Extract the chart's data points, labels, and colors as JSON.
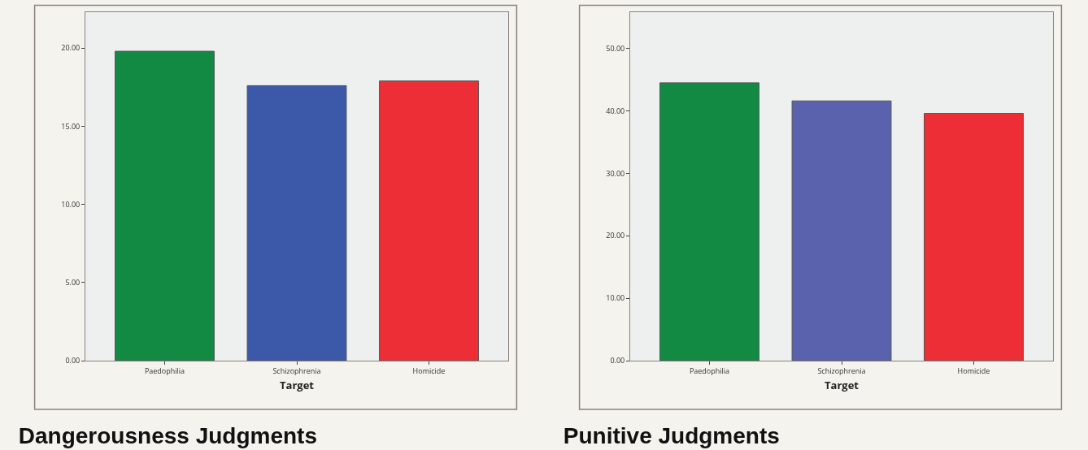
{
  "chart_data": [
    {
      "type": "bar",
      "title": "Dangerousness Judgments",
      "xlabel": "Target",
      "categories": [
        "Paedophilia",
        "Schizophrenia",
        "Homicide"
      ],
      "values": [
        19.8,
        17.6,
        17.9
      ],
      "colors": [
        "#138a43",
        "#3c58a8",
        "#ee2e36"
      ],
      "ylim": [
        0,
        22.3
      ],
      "yticks": [
        {
          "value": 0,
          "label": "0.00"
        },
        {
          "value": 5,
          "label": "5.00"
        },
        {
          "value": 10,
          "label": "10.00"
        },
        {
          "value": 15,
          "label": "15.00"
        },
        {
          "value": 20,
          "label": "20.00"
        }
      ]
    },
    {
      "type": "bar",
      "title": "Punitive Judgments",
      "xlabel": "Target",
      "categories": [
        "Paedophilia",
        "Schizophrenia",
        "Homicide"
      ],
      "values": [
        44.5,
        41.6,
        39.6
      ],
      "colors": [
        "#138a43",
        "#5a62ad",
        "#ee2e36"
      ],
      "ylim": [
        0,
        55.8
      ],
      "yticks": [
        {
          "value": 0,
          "label": "0.00"
        },
        {
          "value": 10,
          "label": "10.00"
        },
        {
          "value": 20,
          "label": "20.00"
        },
        {
          "value": 30,
          "label": "30.00"
        },
        {
          "value": 40,
          "label": "40.00"
        },
        {
          "value": 50,
          "label": "50.00"
        }
      ]
    }
  ]
}
